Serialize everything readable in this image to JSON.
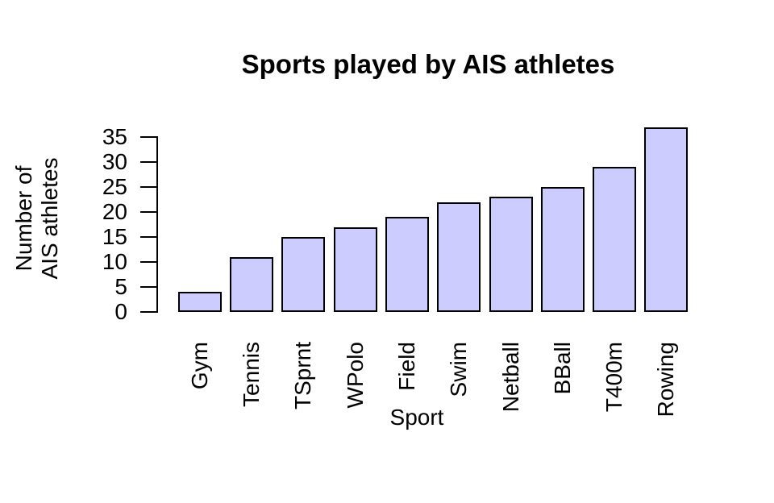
{
  "chart_data": {
    "type": "bar",
    "title": "Sports played by AIS athletes",
    "xlabel": "Sport",
    "ylabel": "Number of AIS athletes",
    "ylabel_lines": [
      "Number of",
      "AIS athletes"
    ],
    "categories": [
      "Gym",
      "Tennis",
      "TSprnt",
      "WPolo",
      "Field",
      "Swim",
      "Netball",
      "BBall",
      "T400m",
      "Rowing"
    ],
    "values": [
      4,
      11,
      15,
      17,
      19,
      22,
      23,
      25,
      29,
      37
    ],
    "yticks": [
      0,
      5,
      10,
      15,
      20,
      25,
      30,
      35
    ],
    "ylim": [
      0,
      37
    ],
    "grid": false,
    "legend": false,
    "colors": {
      "bar_fill": "#ccccff",
      "bar_border": "#000000",
      "axis": "#000000",
      "text": "#000000",
      "background": "#ffffff"
    }
  }
}
